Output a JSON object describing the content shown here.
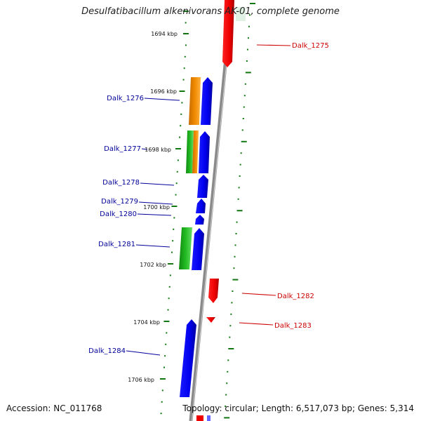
{
  "title": "Desulfatibacillum alkenivorans AK-01, complete genome",
  "footer": {
    "accession": "Accession: NC_011768",
    "topology": "Topology: circular; Length: 6,517,073 bp; Genes: 5,314"
  },
  "colors": {
    "forward_gene": "#ee0000",
    "reverse_gene": "#0000ee",
    "forward_label": "#cc0000",
    "reverse_label": "#000099",
    "orange_feature": "#f08a00",
    "green_feature": "#22bb22",
    "tick": "#117711",
    "backbone": "#888888"
  },
  "ticks": [
    {
      "label": "1694 kbp"
    },
    {
      "label": "1696 kbp"
    },
    {
      "label": "1698 kbp"
    },
    {
      "label": "1700 kbp"
    },
    {
      "label": "1702 kbp"
    },
    {
      "label": "1704 kbp"
    },
    {
      "label": "1706 kbp"
    }
  ],
  "genes": [
    {
      "name": "Dalk_1275",
      "strand": "forward"
    },
    {
      "name": "Dalk_1276",
      "strand": "reverse"
    },
    {
      "name": "Dalk_1277",
      "strand": "reverse"
    },
    {
      "name": "Dalk_1278",
      "strand": "reverse"
    },
    {
      "name": "Dalk_1279",
      "strand": "reverse"
    },
    {
      "name": "Dalk_1280",
      "strand": "reverse"
    },
    {
      "name": "Dalk_1281",
      "strand": "reverse"
    },
    {
      "name": "Dalk_1282",
      "strand": "forward"
    },
    {
      "name": "Dalk_1283",
      "strand": "forward"
    },
    {
      "name": "Dalk_1284",
      "strand": "reverse"
    }
  ]
}
